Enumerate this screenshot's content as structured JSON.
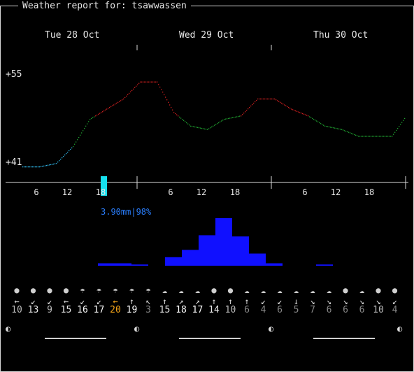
{
  "window_title": "Weather report for: tsawwassen",
  "days": [
    "Tue 28 Oct",
    "Wed 29 Oct",
    "Thu 30 Oct"
  ],
  "y_axis": {
    "top_label": "+55",
    "bottom_label": "+41"
  },
  "x_ticks": [
    "6",
    "12",
    "18",
    "6",
    "12",
    "18",
    "6",
    "12",
    "18"
  ],
  "precip_label": "3.90mm|98%",
  "colors": {
    "cold": "#2fb6e8",
    "mild": "#1f9f2f",
    "warm": "#d11f1f",
    "precip": "#1010ff",
    "cursor": "#16e0ee",
    "highlight": "#f4a418"
  },
  "chart_data": {
    "type": "line",
    "title": "",
    "xlabel": "",
    "ylabel": "",
    "ylim": [
      41,
      55
    ],
    "x": [
      0,
      3,
      6,
      9,
      12,
      15,
      18,
      21,
      24,
      27,
      30,
      33,
      36,
      39,
      42,
      45,
      48,
      51,
      54,
      57,
      60,
      63,
      66,
      69,
      72
    ],
    "values": [
      41,
      41,
      41.5,
      44,
      48,
      49.5,
      51,
      53.5,
      53.5,
      49,
      47,
      46.5,
      48,
      48.5,
      51,
      51,
      49.5,
      48.5,
      47,
      46.5,
      45.5,
      45.5,
      45.5,
      49,
      49
    ],
    "precip_mm": [
      0,
      0,
      0,
      0,
      0,
      0.2,
      0.2,
      0.1,
      0,
      0.7,
      1.3,
      2.5,
      3.9,
      2.4,
      1.0,
      0.2,
      0,
      0,
      0.1,
      0,
      0,
      0,
      0,
      0,
      0
    ]
  },
  "forecast": {
    "icons": [
      "sun-icon",
      "sun-icon",
      "sun-icon",
      "sun-icon",
      "rain-icon",
      "rain-icon",
      "rain-icon",
      "rain-icon",
      "rain-icon",
      "cloud-icon",
      "cloud-icon",
      "cloud-icon",
      "sun-icon",
      "sun-icon",
      "cloud-icon",
      "cloud-icon",
      "cloud-icon",
      "cloud-icon",
      "cloud-icon",
      "cloud-icon",
      "sun-icon",
      "cloud-icon"
    ],
    "glyphs": [
      "●",
      "●",
      "●",
      "●",
      "☂",
      "☂",
      "☂",
      "☂",
      "☂",
      "☁",
      "☁",
      "☁",
      "●",
      "●",
      "☁",
      "☁",
      "☁",
      "☁",
      "☁",
      "☁",
      "●",
      "☁"
    ],
    "arrows": [
      "←",
      "↙",
      "↙",
      "←",
      "↙",
      "↙",
      "←",
      "↑",
      "↖",
      "↑",
      "↗",
      "↗",
      "↑",
      "↑",
      "↑",
      "↙",
      "↙",
      "↓",
      "↘",
      "↘",
      "↘",
      "↘",
      "↘",
      "↙"
    ],
    "wind": [
      "10",
      "13",
      "9",
      "15",
      "16",
      "17",
      "20",
      "19",
      "3",
      "15",
      "18",
      "17",
      "14",
      "10",
      "6",
      "4",
      "6",
      "5",
      "7",
      "6",
      "6",
      "6",
      "10",
      "4"
    ],
    "wind_colors": [
      "#bbb",
      "#e8e8e8",
      "#bbb",
      "#e8e8e8",
      "#fff",
      "#fff",
      "#f4a418",
      "#fff",
      "#888",
      "#e8e8e8",
      "#fff",
      "#fff",
      "#e8e8e8",
      "#bbb",
      "#888",
      "#888",
      "#888",
      "#888",
      "#888",
      "#888",
      "#888",
      "#888",
      "#bbb",
      "#888"
    ]
  },
  "moon_symbol": "◐"
}
